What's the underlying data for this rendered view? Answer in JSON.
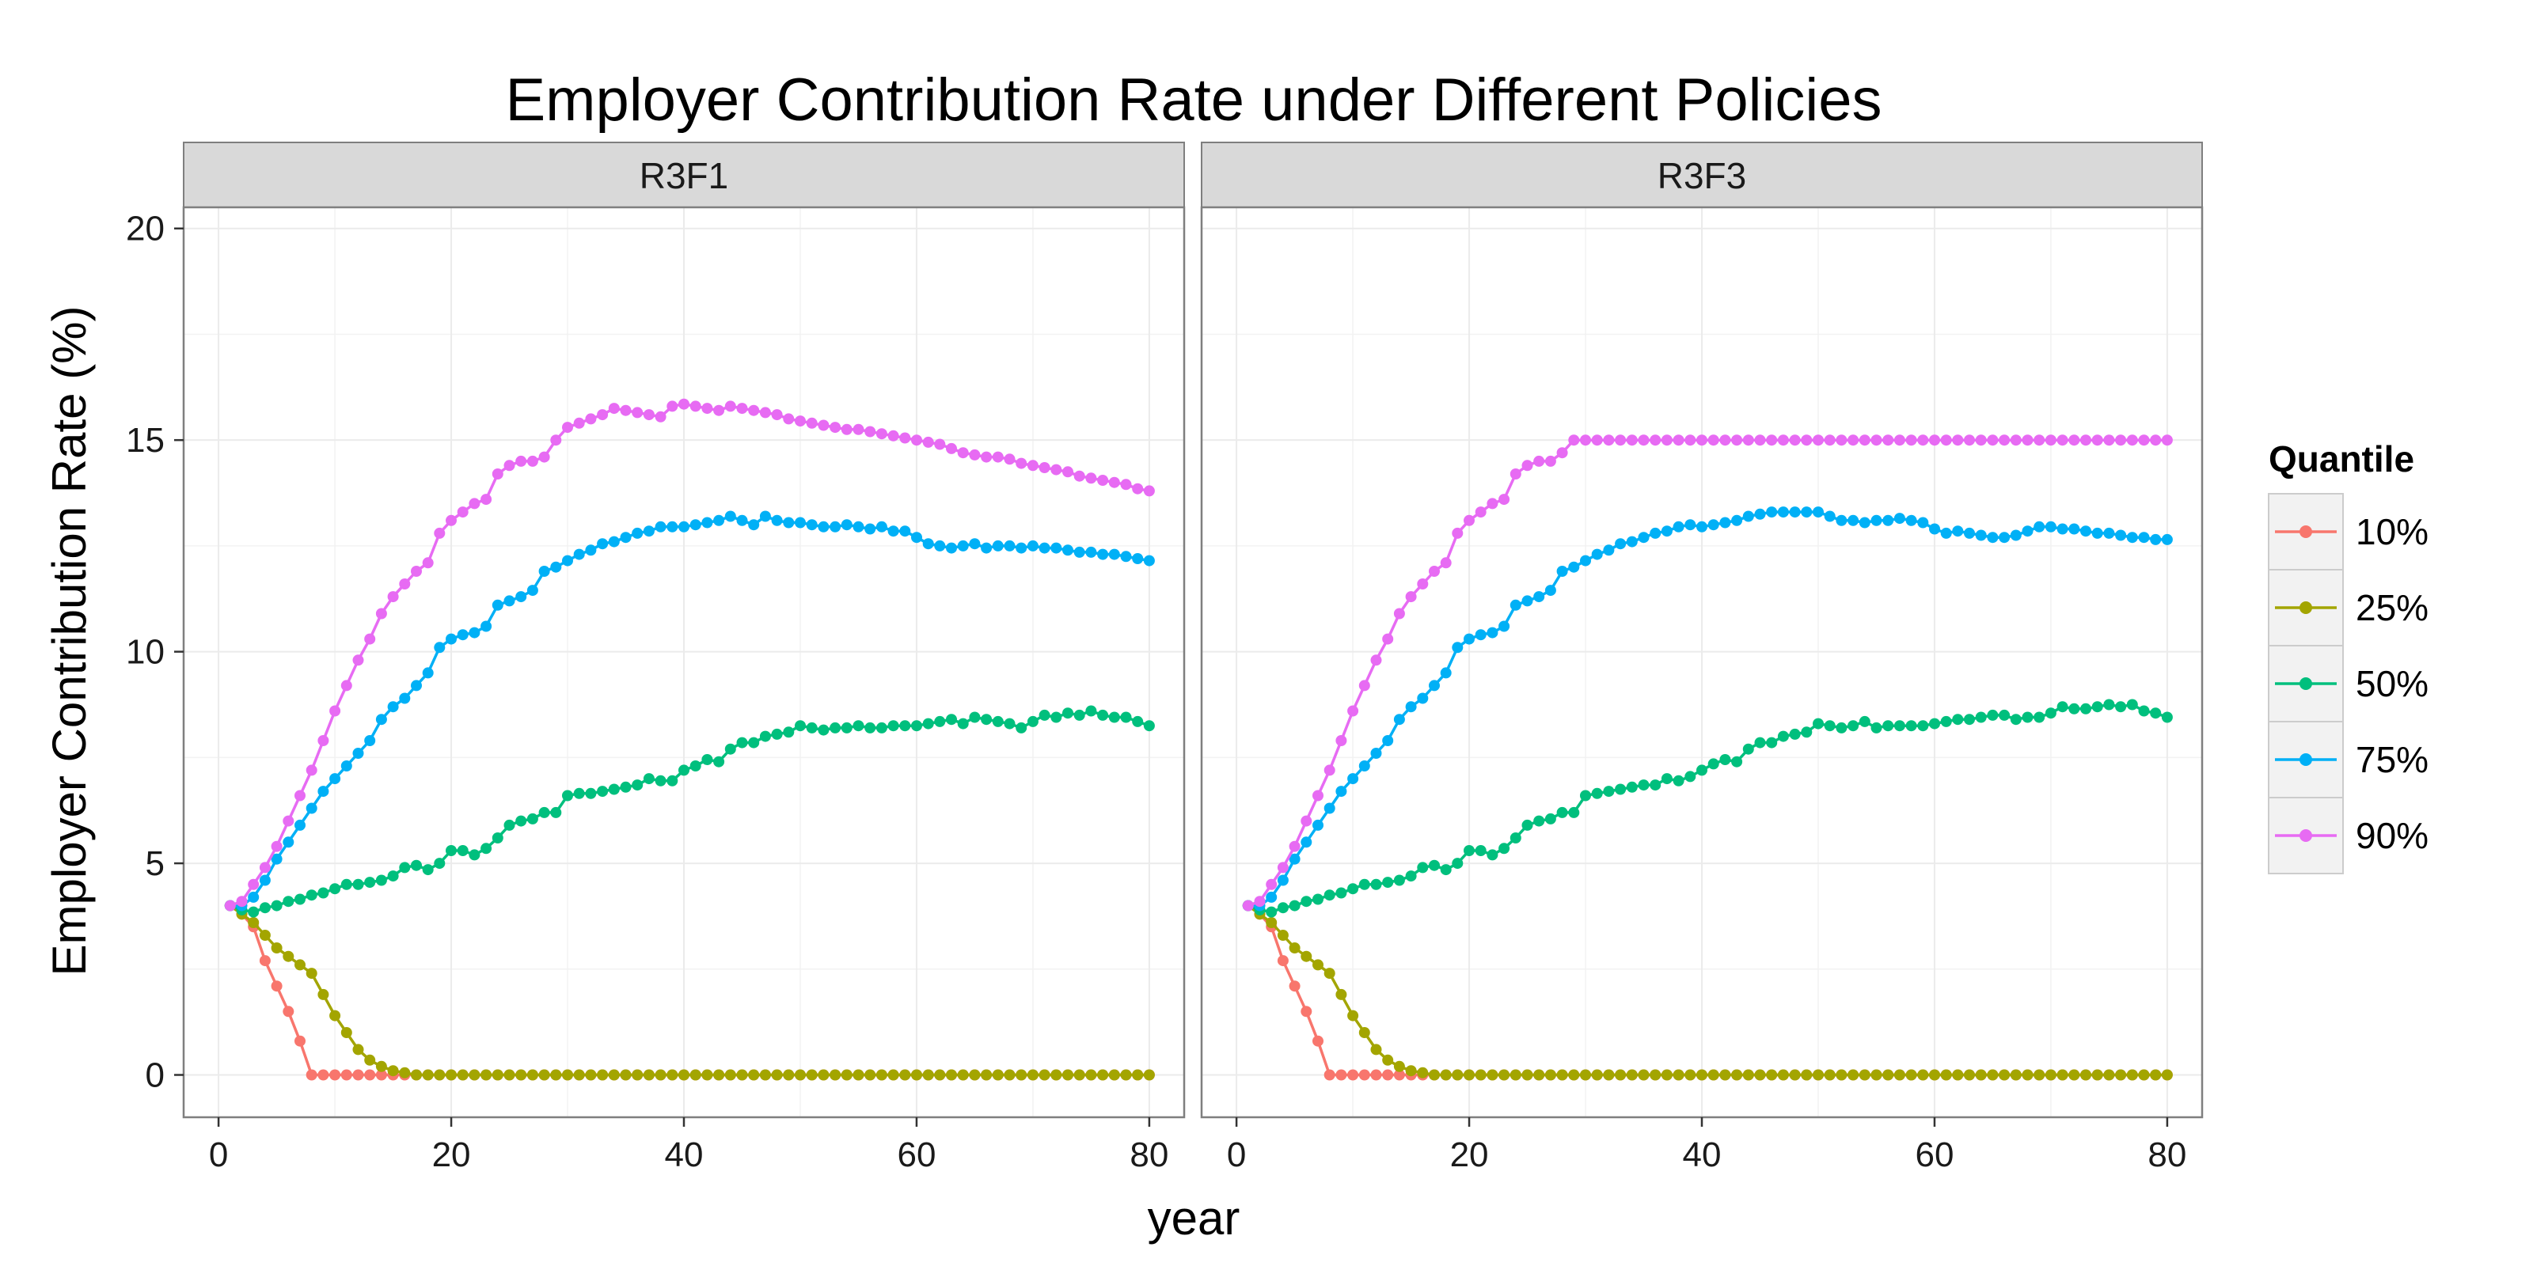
{
  "chart_data": {
    "type": "line",
    "title": "Employer Contribution Rate under Different Policies",
    "xlabel": "year",
    "ylabel": "Employer Contribution Rate (%)",
    "xlim": [
      -3,
      83
    ],
    "ylim": [
      -1,
      20.5
    ],
    "xticks": [
      0,
      20,
      40,
      60,
      80
    ],
    "yticks": [
      0,
      5,
      10,
      15,
      20
    ],
    "grid": true,
    "legend": {
      "title": "Quantile",
      "position": "right",
      "entries": [
        "10%",
        "25%",
        "50%",
        "75%",
        "90%"
      ]
    },
    "colors": {
      "10%": "#F8766D",
      "25%": "#A3A500",
      "50%": "#00BF7D",
      "75%": "#00B0F6",
      "90%": "#E76BF3",
      "strip": "#D9D9D9",
      "panel_border": "#7F7F7F",
      "grid": "#EBEBEB"
    },
    "x": [
      1,
      2,
      3,
      4,
      5,
      6,
      7,
      8,
      9,
      10,
      11,
      12,
      13,
      14,
      15,
      16,
      17,
      18,
      19,
      20,
      21,
      22,
      23,
      24,
      25,
      26,
      27,
      28,
      29,
      30,
      31,
      32,
      33,
      34,
      35,
      36,
      37,
      38,
      39,
      40,
      41,
      42,
      43,
      44,
      45,
      46,
      47,
      48,
      49,
      50,
      51,
      52,
      53,
      54,
      55,
      56,
      57,
      58,
      59,
      60,
      61,
      62,
      63,
      64,
      65,
      66,
      67,
      68,
      69,
      70,
      71,
      72,
      73,
      74,
      75,
      76,
      77,
      78,
      79,
      80
    ],
    "panels": [
      {
        "name": "R3F1",
        "series": [
          {
            "name": "10%",
            "values": [
              4,
              3.8,
              3.5,
              2.7,
              2.1,
              1.5,
              0.8,
              0,
              0,
              0,
              0,
              0,
              0,
              0,
              0,
              0,
              0,
              0,
              0,
              0,
              0,
              0,
              0,
              0,
              0,
              0,
              0,
              0,
              0,
              0,
              0,
              0,
              0,
              0,
              0,
              0,
              0,
              0,
              0,
              0,
              0,
              0,
              0,
              0,
              0,
              0,
              0,
              0,
              0,
              0,
              0,
              0,
              0,
              0,
              0,
              0,
              0,
              0,
              0,
              0,
              0,
              0,
              0,
              0,
              0,
              0,
              0,
              0,
              0,
              0,
              0,
              0,
              0,
              0,
              0,
              0,
              0,
              0,
              0,
              0
            ]
          },
          {
            "name": "25%",
            "values": [
              4,
              3.8,
              3.6,
              3.3,
              3.0,
              2.8,
              2.6,
              2.4,
              1.9,
              1.4,
              1.0,
              0.6,
              0.35,
              0.2,
              0.1,
              0.05,
              0,
              0,
              0,
              0,
              0,
              0,
              0,
              0,
              0,
              0,
              0,
              0,
              0,
              0,
              0,
              0,
              0,
              0,
              0,
              0,
              0,
              0,
              0,
              0,
              0,
              0,
              0,
              0,
              0,
              0,
              0,
              0,
              0,
              0,
              0,
              0,
              0,
              0,
              0,
              0,
              0,
              0,
              0,
              0,
              0,
              0,
              0,
              0,
              0,
              0,
              0,
              0,
              0,
              0,
              0,
              0,
              0,
              0,
              0,
              0,
              0,
              0,
              0,
              0
            ]
          },
          {
            "name": "50%",
            "values": [
              4,
              3.9,
              3.85,
              3.95,
              4.0,
              4.1,
              4.15,
              4.25,
              4.3,
              4.4,
              4.5,
              4.5,
              4.55,
              4.6,
              4.7,
              4.9,
              4.95,
              4.85,
              5.0,
              5.3,
              5.3,
              5.2,
              5.35,
              5.6,
              5.9,
              6.0,
              6.05,
              6.2,
              6.2,
              6.6,
              6.65,
              6.65,
              6.7,
              6.75,
              6.8,
              6.85,
              7.0,
              6.95,
              6.95,
              7.2,
              7.3,
              7.45,
              7.4,
              7.7,
              7.85,
              7.85,
              8.0,
              8.05,
              8.1,
              8.25,
              8.2,
              8.15,
              8.2,
              8.2,
              8.25,
              8.2,
              8.2,
              8.25,
              8.25,
              8.25,
              8.3,
              8.35,
              8.4,
              8.3,
              8.45,
              8.4,
              8.35,
              8.3,
              8.2,
              8.35,
              8.5,
              8.45,
              8.55,
              8.5,
              8.6,
              8.5,
              8.45,
              8.45,
              8.35,
              8.25
            ]
          },
          {
            "name": "75%",
            "values": [
              4,
              4.0,
              4.2,
              4.6,
              5.1,
              5.5,
              5.9,
              6.3,
              6.7,
              7.0,
              7.3,
              7.6,
              7.9,
              8.4,
              8.7,
              8.9,
              9.2,
              9.5,
              10.1,
              10.3,
              10.4,
              10.45,
              10.6,
              11.1,
              11.2,
              11.3,
              11.45,
              11.9,
              12.0,
              12.15,
              12.3,
              12.4,
              12.55,
              12.6,
              12.7,
              12.8,
              12.85,
              12.95,
              12.95,
              12.95,
              13.0,
              13.05,
              13.1,
              13.2,
              13.1,
              13.0,
              13.2,
              13.1,
              13.05,
              13.05,
              13.0,
              12.95,
              12.95,
              13.0,
              12.95,
              12.9,
              12.95,
              12.85,
              12.85,
              12.7,
              12.55,
              12.5,
              12.45,
              12.5,
              12.55,
              12.45,
              12.5,
              12.5,
              12.45,
              12.5,
              12.45,
              12.45,
              12.4,
              12.35,
              12.35,
              12.3,
              12.3,
              12.25,
              12.2,
              12.15
            ]
          },
          {
            "name": "90%",
            "values": [
              4,
              4.1,
              4.5,
              4.9,
              5.4,
              6.0,
              6.6,
              7.2,
              7.9,
              8.6,
              9.2,
              9.8,
              10.3,
              10.9,
              11.3,
              11.6,
              11.9,
              12.1,
              12.8,
              13.1,
              13.3,
              13.5,
              13.6,
              14.2,
              14.4,
              14.5,
              14.5,
              14.6,
              15.0,
              15.3,
              15.4,
              15.5,
              15.6,
              15.75,
              15.7,
              15.65,
              15.6,
              15.55,
              15.8,
              15.85,
              15.8,
              15.75,
              15.7,
              15.8,
              15.75,
              15.7,
              15.65,
              15.6,
              15.5,
              15.45,
              15.4,
              15.35,
              15.3,
              15.25,
              15.25,
              15.2,
              15.15,
              15.1,
              15.05,
              15.0,
              14.95,
              14.9,
              14.8,
              14.7,
              14.65,
              14.6,
              14.6,
              14.55,
              14.45,
              14.4,
              14.35,
              14.3,
              14.25,
              14.15,
              14.1,
              14.05,
              14.0,
              13.95,
              13.85,
              13.8
            ]
          }
        ]
      },
      {
        "name": "R3F3",
        "series": [
          {
            "name": "10%",
            "values": [
              4,
              3.8,
              3.5,
              2.7,
              2.1,
              1.5,
              0.8,
              0,
              0,
              0,
              0,
              0,
              0,
              0,
              0,
              0,
              0,
              0,
              0,
              0,
              0,
              0,
              0,
              0,
              0,
              0,
              0,
              0,
              0,
              0,
              0,
              0,
              0,
              0,
              0,
              0,
              0,
              0,
              0,
              0,
              0,
              0,
              0,
              0,
              0,
              0,
              0,
              0,
              0,
              0,
              0,
              0,
              0,
              0,
              0,
              0,
              0,
              0,
              0,
              0,
              0,
              0,
              0,
              0,
              0,
              0,
              0,
              0,
              0,
              0,
              0,
              0,
              0,
              0,
              0,
              0,
              0,
              0,
              0,
              0
            ]
          },
          {
            "name": "25%",
            "values": [
              4,
              3.8,
              3.6,
              3.3,
              3.0,
              2.8,
              2.6,
              2.4,
              1.9,
              1.4,
              1.0,
              0.6,
              0.35,
              0.2,
              0.1,
              0.05,
              0,
              0,
              0,
              0,
              0,
              0,
              0,
              0,
              0,
              0,
              0,
              0,
              0,
              0,
              0,
              0,
              0,
              0,
              0,
              0,
              0,
              0,
              0,
              0,
              0,
              0,
              0,
              0,
              0,
              0,
              0,
              0,
              0,
              0,
              0,
              0,
              0,
              0,
              0,
              0,
              0,
              0,
              0,
              0,
              0,
              0,
              0,
              0,
              0,
              0,
              0,
              0,
              0,
              0,
              0,
              0,
              0,
              0,
              0,
              0,
              0,
              0,
              0,
              0
            ]
          },
          {
            "name": "50%",
            "values": [
              4,
              3.9,
              3.85,
              3.95,
              4.0,
              4.1,
              4.15,
              4.25,
              4.3,
              4.4,
              4.5,
              4.5,
              4.55,
              4.6,
              4.7,
              4.9,
              4.95,
              4.85,
              5.0,
              5.3,
              5.3,
              5.2,
              5.35,
              5.6,
              5.9,
              6.0,
              6.05,
              6.2,
              6.2,
              6.6,
              6.65,
              6.7,
              6.75,
              6.8,
              6.85,
              6.85,
              7.0,
              6.95,
              7.05,
              7.2,
              7.35,
              7.45,
              7.4,
              7.7,
              7.85,
              7.85,
              8.0,
              8.05,
              8.1,
              8.3,
              8.25,
              8.2,
              8.25,
              8.35,
              8.2,
              8.25,
              8.25,
              8.25,
              8.25,
              8.3,
              8.35,
              8.4,
              8.4,
              8.45,
              8.5,
              8.5,
              8.4,
              8.45,
              8.45,
              8.55,
              8.7,
              8.65,
              8.65,
              8.7,
              8.75,
              8.7,
              8.75,
              8.6,
              8.55,
              8.45
            ]
          },
          {
            "name": "75%",
            "values": [
              4,
              4.0,
              4.2,
              4.6,
              5.1,
              5.5,
              5.9,
              6.3,
              6.7,
              7.0,
              7.3,
              7.6,
              7.9,
              8.4,
              8.7,
              8.9,
              9.2,
              9.5,
              10.1,
              10.3,
              10.4,
              10.45,
              10.6,
              11.1,
              11.2,
              11.3,
              11.45,
              11.9,
              12.0,
              12.15,
              12.3,
              12.4,
              12.55,
              12.6,
              12.7,
              12.8,
              12.85,
              12.95,
              13.0,
              12.95,
              13.0,
              13.05,
              13.1,
              13.2,
              13.25,
              13.3,
              13.3,
              13.3,
              13.3,
              13.3,
              13.2,
              13.1,
              13.1,
              13.05,
              13.1,
              13.1,
              13.15,
              13.1,
              13.05,
              12.9,
              12.8,
              12.85,
              12.8,
              12.75,
              12.7,
              12.7,
              12.75,
              12.85,
              12.95,
              12.95,
              12.9,
              12.9,
              12.85,
              12.8,
              12.8,
              12.75,
              12.7,
              12.7,
              12.65,
              12.65
            ]
          },
          {
            "name": "90%",
            "values": [
              4,
              4.1,
              4.5,
              4.9,
              5.4,
              6.0,
              6.6,
              7.2,
              7.9,
              8.6,
              9.2,
              9.8,
              10.3,
              10.9,
              11.3,
              11.6,
              11.9,
              12.1,
              12.8,
              13.1,
              13.3,
              13.5,
              13.6,
              14.2,
              14.4,
              14.5,
              14.5,
              14.7,
              15,
              15,
              15,
              15,
              15,
              15,
              15,
              15,
              15,
              15,
              15,
              15,
              15,
              15,
              15,
              15,
              15,
              15,
              15,
              15,
              15,
              15,
              15,
              15,
              15,
              15,
              15,
              15,
              15,
              15,
              15,
              15,
              15,
              15,
              15,
              15,
              15,
              15,
              15,
              15,
              15,
              15,
              15,
              15,
              15,
              15,
              15,
              15,
              15,
              15,
              15,
              15
            ]
          }
        ]
      }
    ]
  }
}
